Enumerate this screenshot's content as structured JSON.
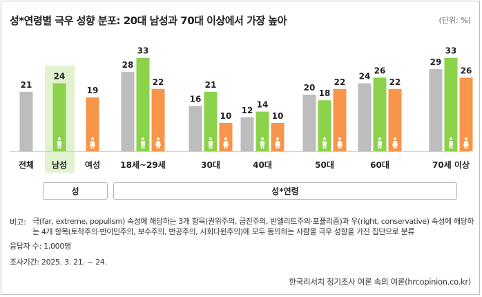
{
  "title": "성*연령별 극우 성향 분포: 20대 남성과 70대 이상에서 가장 높아",
  "unit": "(단위: %)",
  "colors": {
    "total": "#bdbdbd",
    "male": "#8bd34a",
    "female": "#f7954a",
    "highlight": "#e2f2cf",
    "icon": "#ffffff"
  },
  "chart_data": {
    "type": "bar",
    "categories": [
      "전체",
      "남성",
      "여성",
      "18세~29세",
      "30대",
      "40대",
      "50대",
      "60대",
      "70세 이상"
    ],
    "series": [
      {
        "name": "전체",
        "values": [
          21,
          null,
          null,
          28,
          16,
          12,
          20,
          24,
          29
        ]
      },
      {
        "name": "남성",
        "values": [
          null,
          24,
          null,
          33,
          21,
          14,
          18,
          26,
          33
        ]
      },
      {
        "name": "여성",
        "values": [
          null,
          null,
          19,
          22,
          10,
          10,
          22,
          22,
          26
        ]
      }
    ],
    "groups": [
      {
        "label": "성",
        "categories": [
          "남성",
          "여성"
        ]
      },
      {
        "label": "성*연령",
        "categories": [
          "18세~29세",
          "30대",
          "40대",
          "50대",
          "60대",
          "70세 이상"
        ]
      }
    ],
    "highlight_category": "남성",
    "ylim": [
      0,
      40
    ],
    "grid": false
  },
  "notes": {
    "label": "비고:",
    "text": "극(far, extreme, populism) 속성에 해당하는 3개 항목(권위주의, 급진주의, 반엘리트주의·포퓰리즘)과 우(right, conservative) 속성에 해당하는 4개 항목(토착주의·반이민주의, 보수주의, 반공주의, 사회다윈주의)에 모두 동의하는 사람을 극우 성향을 가진 집단으로 분류",
    "respondents": "응답자 수: 1,000명",
    "period": "조사기간: 2025. 3. 21. ~ 24."
  },
  "source": "한국리서치 정기조사 여론 속의 여론(hrcopinion.co.kr)"
}
